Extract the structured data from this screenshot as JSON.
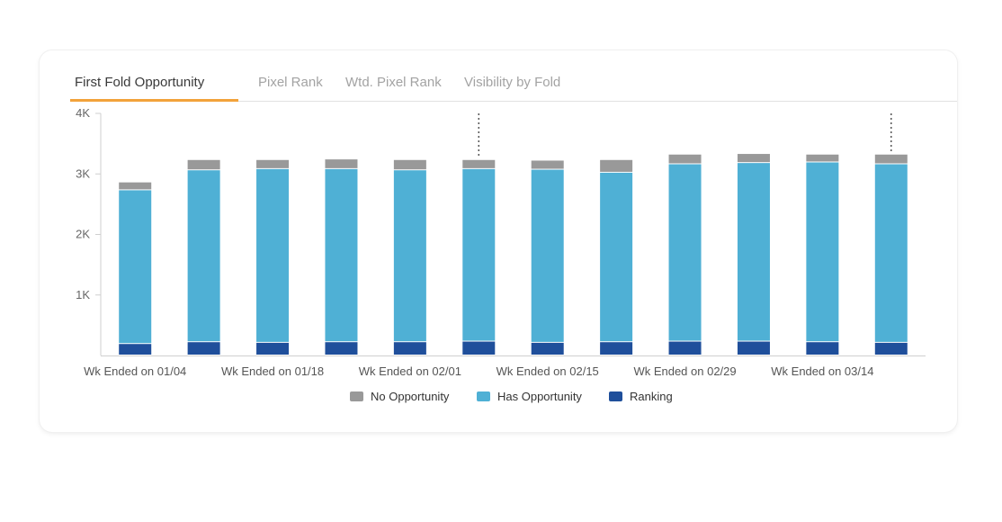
{
  "tabs": [
    {
      "label": "First Fold Opportunity",
      "active": true
    },
    {
      "label": "Pixel Rank",
      "active": false
    },
    {
      "label": "Wtd. Pixel Rank",
      "active": false
    },
    {
      "label": "Visibility by Fold",
      "active": false
    }
  ],
  "colors": {
    "no_opportunity": "#999999",
    "has_opportunity": "#4fb0d5",
    "ranking": "#1f4f9b",
    "active_tab_underline": "#f2a23a"
  },
  "legend": [
    {
      "label": "No Opportunity",
      "color": "#999999"
    },
    {
      "label": "Has Opportunity",
      "color": "#4fb0d5"
    },
    {
      "label": "Ranking",
      "color": "#1f4f9b"
    }
  ],
  "chart_data": {
    "type": "bar",
    "stacked": true,
    "categories": [
      "Wk Ended on 01/04",
      "",
      "Wk Ended on 01/18",
      "",
      "Wk Ended on 02/01",
      "",
      "Wk Ended on 02/15",
      "",
      "Wk Ended on 02/29",
      "",
      "Wk Ended on 03/14",
      ""
    ],
    "series": [
      {
        "name": "Ranking",
        "color": "#1f4f9b",
        "values": [
          190,
          220,
          210,
          220,
          220,
          230,
          210,
          220,
          230,
          230,
          220,
          210
        ]
      },
      {
        "name": "Has Opportunity",
        "color": "#4fb0d5",
        "values": [
          2540,
          2840,
          2870,
          2860,
          2840,
          2850,
          2860,
          2800,
          2930,
          2950,
          2970,
          2950
        ]
      },
      {
        "name": "No Opportunity",
        "color": "#999999",
        "values": [
          130,
          170,
          150,
          160,
          170,
          150,
          150,
          210,
          160,
          150,
          130,
          160
        ]
      }
    ],
    "yticks": [
      "4K",
      "3K",
      "2K",
      "1K"
    ],
    "ytick_values": [
      4000,
      3000,
      2000,
      1000
    ],
    "ylim": [
      0,
      4000
    ],
    "markers": [
      5,
      11
    ],
    "legend_position": "bottom",
    "grid": false
  }
}
